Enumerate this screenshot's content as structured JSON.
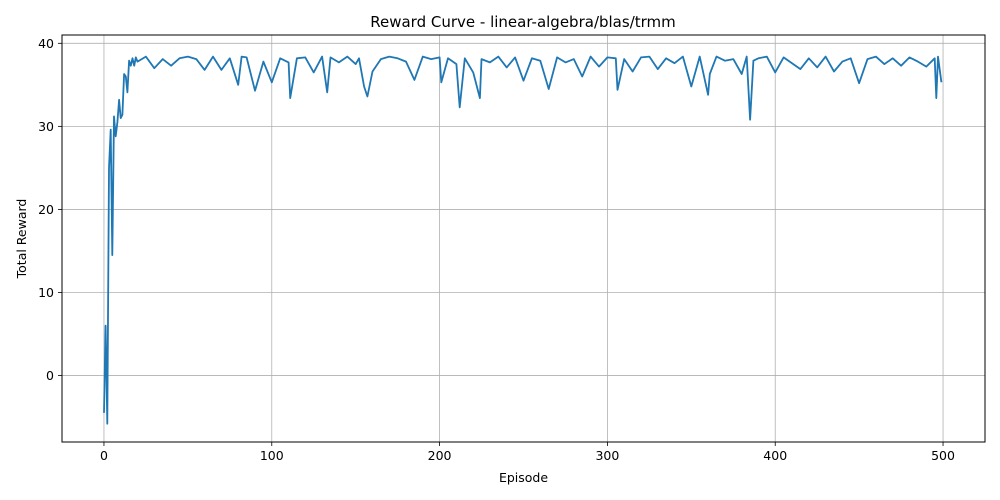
{
  "chart_data": {
    "type": "line",
    "title": "Reward Curve - linear-algebra/blas/trmm",
    "xlabel": "Episode",
    "ylabel": "Total Reward",
    "xlim": [
      -25,
      525
    ],
    "ylim": [
      -8,
      41
    ],
    "xticks": [
      0,
      100,
      200,
      300,
      400,
      500
    ],
    "yticks": [
      0,
      10,
      20,
      30,
      40
    ],
    "grid": true,
    "legend": "none",
    "series": [
      {
        "color": "#1f77b4",
        "x": [
          0,
          1,
          2,
          3,
          4,
          5,
          6,
          7,
          8,
          9,
          10,
          11,
          12,
          13,
          14,
          15,
          16,
          17,
          18,
          19,
          20,
          25,
          30,
          35,
          40,
          45,
          50,
          55,
          60,
          65,
          70,
          75,
          80,
          82,
          85,
          90,
          95,
          100,
          105,
          110,
          111,
          115,
          120,
          125,
          130,
          133,
          135,
          140,
          145,
          150,
          152,
          155,
          157,
          160,
          165,
          170,
          175,
          180,
          185,
          190,
          195,
          200,
          201,
          205,
          210,
          212,
          215,
          220,
          224,
          225,
          230,
          235,
          240,
          245,
          250,
          255,
          260,
          265,
          270,
          275,
          280,
          285,
          290,
          295,
          300,
          305,
          306,
          310,
          315,
          320,
          325,
          330,
          335,
          340,
          345,
          350,
          355,
          360,
          361,
          365,
          370,
          375,
          380,
          383,
          385,
          387,
          390,
          395,
          400,
          405,
          410,
          415,
          420,
          425,
          430,
          435,
          440,
          445,
          450,
          455,
          460,
          465,
          470,
          475,
          480,
          485,
          490,
          495,
          496,
          497,
          499
        ],
        "y": [
          -4.5,
          6,
          -5.8,
          25,
          29.6,
          14.5,
          31.2,
          28.8,
          30.5,
          33.2,
          31,
          31.4,
          36.3,
          36,
          34.1,
          37.9,
          37.3,
          38.2,
          37.3,
          38.3,
          37.8,
          38.4,
          37,
          38.1,
          37.3,
          38.2,
          38.4,
          38.1,
          36.8,
          38.4,
          36.8,
          38.2,
          35,
          38.4,
          38.3,
          34.3,
          37.8,
          35.3,
          38.2,
          37.7,
          33.4,
          38.2,
          38.3,
          36.5,
          38.4,
          34.1,
          38.3,
          37.7,
          38.4,
          37.5,
          38.2,
          34.8,
          33.6,
          36.6,
          38.1,
          38.4,
          38.2,
          37.8,
          35.6,
          38.4,
          38.1,
          38.3,
          35.3,
          38.2,
          37.5,
          32.3,
          38.2,
          36.5,
          33.4,
          38.1,
          37.7,
          38.4,
          37.1,
          38.3,
          35.5,
          38.2,
          37.9,
          34.5,
          38.3,
          37.7,
          38.1,
          36,
          38.4,
          37.2,
          38.3,
          38.2,
          34.4,
          38.1,
          36.6,
          38.3,
          38.4,
          36.9,
          38.2,
          37.6,
          38.4,
          34.8,
          38.4,
          33.8,
          36.3,
          38.4,
          37.9,
          38.1,
          36.3,
          38.4,
          30.8,
          37.9,
          38.2,
          38.4,
          36.5,
          38.3,
          37.6,
          36.9,
          38.2,
          37.1,
          38.4,
          36.6,
          37.8,
          38.2,
          35.2,
          38.1,
          38.4,
          37.5,
          38.2,
          37.3,
          38.3,
          37.8,
          37.2,
          38.2,
          33.4,
          38.4,
          35.3
        ]
      }
    ]
  }
}
